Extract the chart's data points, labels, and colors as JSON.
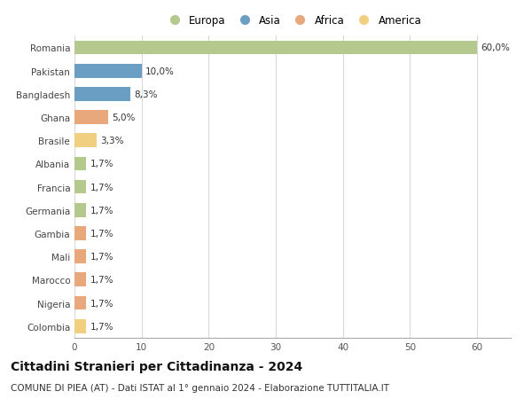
{
  "countries": [
    "Romania",
    "Pakistan",
    "Bangladesh",
    "Ghana",
    "Brasile",
    "Albania",
    "Francia",
    "Germania",
    "Gambia",
    "Mali",
    "Marocco",
    "Nigeria",
    "Colombia"
  ],
  "values": [
    60.0,
    10.0,
    8.3,
    5.0,
    3.3,
    1.7,
    1.7,
    1.7,
    1.7,
    1.7,
    1.7,
    1.7,
    1.7
  ],
  "labels": [
    "60,0%",
    "10,0%",
    "8,3%",
    "5,0%",
    "3,3%",
    "1,7%",
    "1,7%",
    "1,7%",
    "1,7%",
    "1,7%",
    "1,7%",
    "1,7%",
    "1,7%"
  ],
  "continents": [
    "Europa",
    "Asia",
    "Asia",
    "Africa",
    "America",
    "Europa",
    "Europa",
    "Europa",
    "Africa",
    "Africa",
    "Africa",
    "Africa",
    "America"
  ],
  "continent_colors": {
    "Europa": "#b5c98e",
    "Asia": "#6b9ec3",
    "Africa": "#e8a87c",
    "America": "#f0d080"
  },
  "legend_order": [
    "Europa",
    "Asia",
    "Africa",
    "America"
  ],
  "title": "Cittadini Stranieri per Cittadinanza - 2024",
  "subtitle": "COMUNE DI PIEA (AT) - Dati ISTAT al 1° gennaio 2024 - Elaborazione TUTTITALIA.IT",
  "xlim": [
    0,
    65
  ],
  "xticks": [
    0,
    10,
    20,
    30,
    40,
    50,
    60
  ],
  "background_color": "#ffffff",
  "grid_color": "#d8d8d8",
  "bar_height": 0.6,
  "title_fontsize": 10,
  "subtitle_fontsize": 7.5,
  "label_fontsize": 7.5,
  "tick_fontsize": 7.5,
  "legend_fontsize": 8.5
}
